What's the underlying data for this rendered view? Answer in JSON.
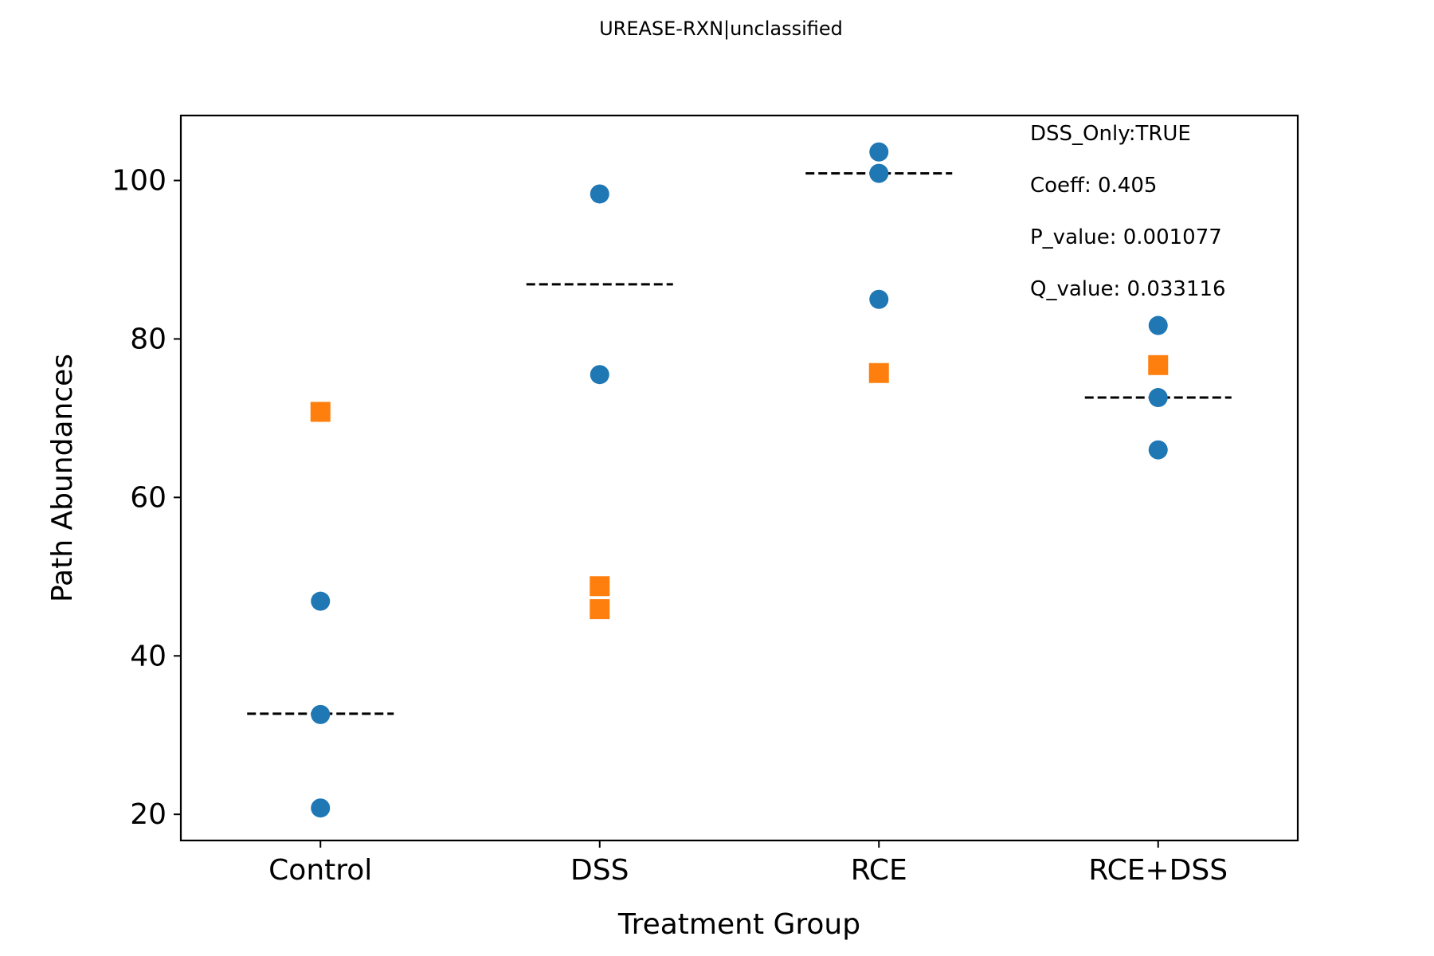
{
  "chart_data": {
    "type": "scatter",
    "title": "UREASE-RXN|unclassified",
    "xlabel": "Treatment Group",
    "ylabel": "Path Abundances",
    "categories": [
      "Control",
      "DSS",
      "RCE",
      "RCE+DSS"
    ],
    "ylim": [
      16.7,
      108.2
    ],
    "yticks": [
      20,
      40,
      60,
      80,
      100
    ],
    "grid": false,
    "series": [
      {
        "marker": "circle",
        "color": "#1f77b4",
        "points": [
          {
            "category": "Control",
            "y": 46.9
          },
          {
            "category": "Control",
            "y": 32.6
          },
          {
            "category": "Control",
            "y": 20.8
          },
          {
            "category": "DSS",
            "y": 98.3
          },
          {
            "category": "DSS",
            "y": 75.5
          },
          {
            "category": "RCE",
            "y": 103.6
          },
          {
            "category": "RCE",
            "y": 100.9
          },
          {
            "category": "RCE",
            "y": 85.0
          },
          {
            "category": "RCE+DSS",
            "y": 81.7
          },
          {
            "category": "RCE+DSS",
            "y": 72.6
          },
          {
            "category": "RCE+DSS",
            "y": 66.0
          }
        ]
      },
      {
        "marker": "square",
        "color": "#ff7f0e",
        "points": [
          {
            "category": "Control",
            "y": 70.8
          },
          {
            "category": "DSS",
            "y": 48.8
          },
          {
            "category": "DSS",
            "y": 45.9
          },
          {
            "category": "RCE",
            "y": 75.7
          },
          {
            "category": "RCE+DSS",
            "y": 76.7
          }
        ]
      }
    ],
    "group_means": [
      {
        "category": "Control",
        "y": 32.7
      },
      {
        "category": "DSS",
        "y": 86.9
      },
      {
        "category": "RCE",
        "y": 100.9
      },
      {
        "category": "RCE+DSS",
        "y": 72.6
      }
    ],
    "mean_line_style": "dashed",
    "annotations": [
      "DSS_Only:TRUE",
      "Coeff: 0.405",
      "P_value: 0.001077",
      "Q_value: 0.033116"
    ],
    "annotation_placement": "top-right"
  }
}
